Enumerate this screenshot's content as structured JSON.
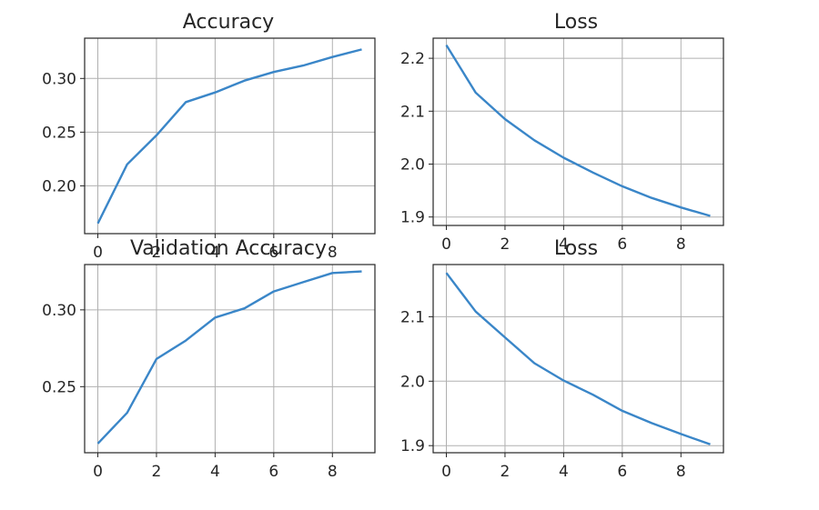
{
  "chart_data": [
    {
      "type": "line",
      "title": "Accuracy",
      "xlabel": "",
      "ylabel": "",
      "xlim": [
        -0.45,
        9.45
      ],
      "ylim": [
        0.1555,
        0.3375
      ],
      "xticks": [
        0,
        2,
        4,
        6,
        8
      ],
      "yticks": [
        0.2,
        0.25,
        0.3
      ],
      "ytick_labels": [
        "0.20",
        "0.25",
        "0.30"
      ],
      "grid": true,
      "series": [
        {
          "x": [
            0,
            1,
            2,
            3,
            4,
            5,
            6,
            7,
            8,
            9
          ],
          "y": [
            0.165,
            0.22,
            0.247,
            0.278,
            0.287,
            0.298,
            0.306,
            0.312,
            0.32,
            0.327
          ]
        }
      ]
    },
    {
      "type": "line",
      "title": "Loss",
      "xlabel": "",
      "ylabel": "",
      "xlim": [
        -0.45,
        9.45
      ],
      "ylim": [
        1.884,
        2.238
      ],
      "xticks": [
        0,
        2,
        4,
        6,
        8
      ],
      "yticks": [
        1.9,
        2.0,
        2.1,
        2.2
      ],
      "ytick_labels": [
        "1.9",
        "2.0",
        "2.1",
        "2.2"
      ],
      "grid": true,
      "series": [
        {
          "x": [
            0,
            1,
            2,
            3,
            4,
            5,
            6,
            7,
            8,
            9
          ],
          "y": [
            2.225,
            2.135,
            2.085,
            2.045,
            2.012,
            1.984,
            1.958,
            1.936,
            1.918,
            1.902
          ]
        }
      ]
    },
    {
      "type": "line",
      "title": "Validation Accuracy",
      "xlabel": "",
      "ylabel": "",
      "xlim": [
        -0.45,
        9.45
      ],
      "ylim": [
        0.207,
        0.3295
      ],
      "xticks": [
        0,
        2,
        4,
        6,
        8
      ],
      "xtick_labels": [
        "0",
        "2",
        "4",
        "6",
        "8"
      ],
      "yticks": [
        0.25,
        0.3
      ],
      "ytick_labels": [
        "0.25",
        "0.30"
      ],
      "grid": true,
      "series": [
        {
          "x": [
            0,
            1,
            2,
            3,
            4,
            5,
            6,
            7,
            8,
            9
          ],
          "y": [
            0.213,
            0.233,
            0.268,
            0.28,
            0.295,
            0.301,
            0.312,
            0.318,
            0.324,
            0.325
          ]
        }
      ]
    },
    {
      "type": "line",
      "title": "Loss",
      "xlabel": "",
      "ylabel": "",
      "xlim": [
        -0.45,
        9.45
      ],
      "ylim": [
        1.889,
        2.181
      ],
      "xticks": [
        0,
        2,
        4,
        6,
        8
      ],
      "xtick_labels": [
        "0",
        "2",
        "4",
        "6",
        "8"
      ],
      "yticks": [
        1.9,
        2.0,
        2.1
      ],
      "ytick_labels": [
        "1.9",
        "2.0",
        "2.1"
      ],
      "grid": true,
      "series": [
        {
          "x": [
            0,
            1,
            2,
            3,
            4,
            5,
            6,
            7,
            8,
            9
          ],
          "y": [
            2.168,
            2.108,
            2.068,
            2.028,
            2.001,
            1.979,
            1.954,
            1.935,
            1.918,
            1.902
          ]
        }
      ]
    }
  ],
  "colors": {
    "line": "#3a86c8",
    "grid": "#b0b0b0",
    "axes": "#262626",
    "text": "#262626",
    "background": "#ffffff"
  }
}
